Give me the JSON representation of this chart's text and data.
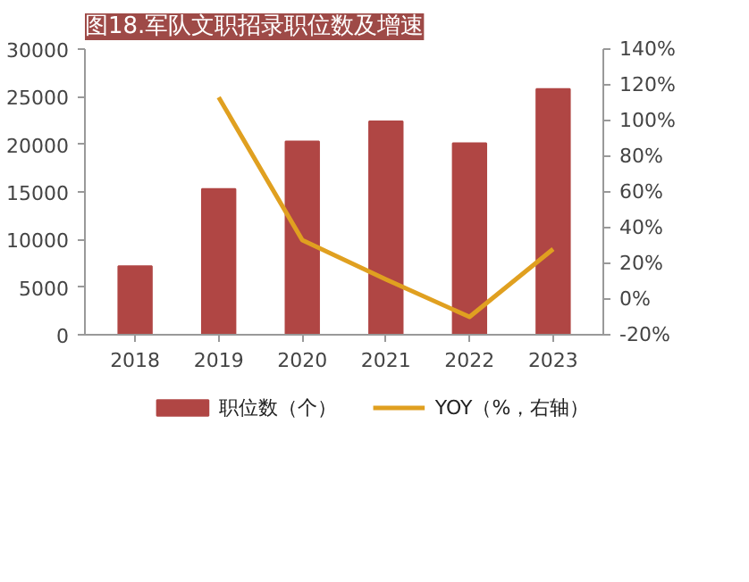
{
  "chart_data": {
    "type": "bar",
    "title": "图18.军队文职招录职位数及增速",
    "categories": [
      "2018",
      "2019",
      "2020",
      "2021",
      "2022",
      "2023"
    ],
    "series": [
      {
        "name": "职位数（个）",
        "color": "#b04644",
        "values": [
          7200,
          15300,
          20300,
          22400,
          20100,
          25800
        ]
      },
      {
        "name": "YOY（%，右轴）",
        "type": "line",
        "axis": "y2",
        "color": "#e0a020",
        "values": [
          null,
          113,
          33,
          11,
          -10,
          28
        ]
      }
    ],
    "ylim": [
      0,
      30000
    ],
    "yticks": [
      0,
      5000,
      10000,
      15000,
      20000,
      25000,
      30000
    ],
    "y2lim": [
      -20,
      140
    ],
    "y2ticks": [
      {
        "value": -20,
        "label": "-20%"
      },
      {
        "value": 0,
        "label": "0%"
      },
      {
        "value": 20,
        "label": "20%"
      },
      {
        "value": 40,
        "label": "40%"
      },
      {
        "value": 60,
        "label": "60%"
      },
      {
        "value": 80,
        "label": "80%"
      },
      {
        "value": 100,
        "label": "100%"
      },
      {
        "value": 120,
        "label": "120%"
      },
      {
        "value": 140,
        "label": "140%"
      }
    ],
    "grid": false,
    "legend": "bottom",
    "marker": "none",
    "line_style": "solid"
  }
}
